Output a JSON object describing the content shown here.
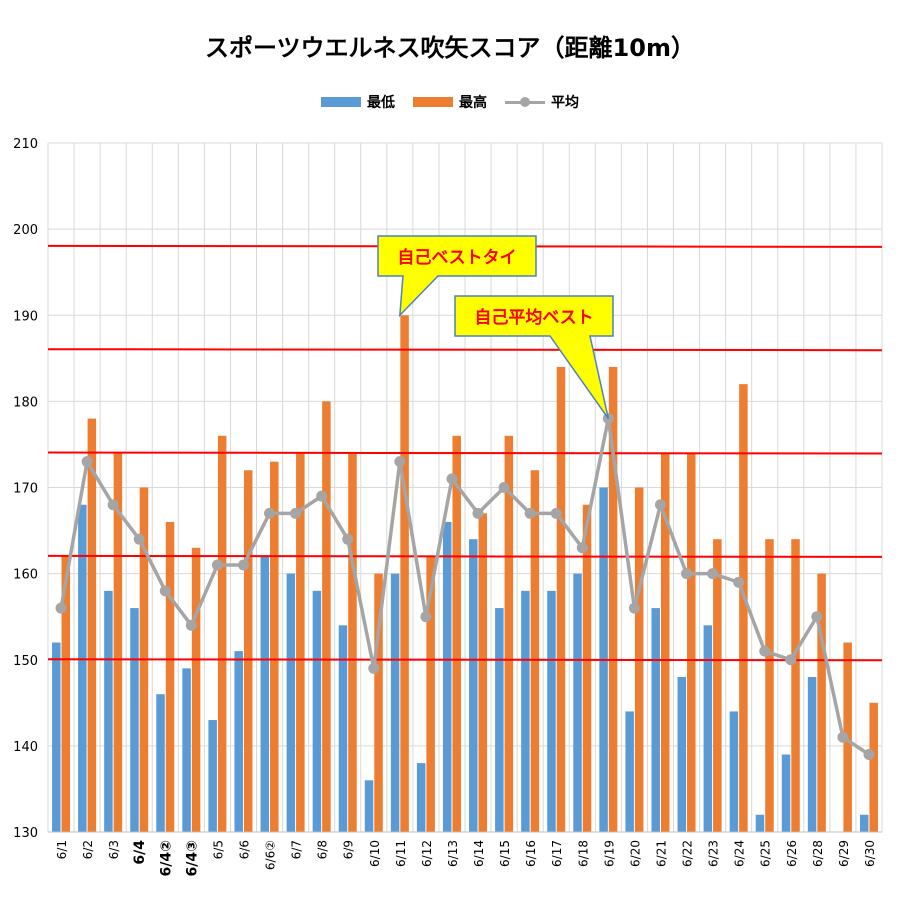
{
  "title": "スポーツウエルネス吹矢スコア（距離10m）",
  "legend": [
    {
      "label": "最低",
      "kind": "bar",
      "color": "#5B9BD5"
    },
    {
      "label": "最高",
      "kind": "bar",
      "color": "#ED7D31"
    },
    {
      "label": "平均",
      "kind": "line",
      "color": "#A5A5A5"
    }
  ],
  "callouts": [
    {
      "text": "自己ベストタイ",
      "x_category": "6/11",
      "y": 190
    },
    {
      "text": "自己平均ベスト",
      "x_category": "6/19",
      "y": 178
    }
  ],
  "colors": {
    "min": "#5B9BD5",
    "max": "#ED7D31",
    "avg": "#A5A5A5",
    "refline": "#FF0000",
    "grid": "#D9D9D9",
    "callout_fill": "#FFFF00",
    "callout_border": "#4F81BD",
    "callout_text": "#FF0000"
  },
  "chart_data": {
    "type": "bar",
    "title": "スポーツウエルネス吹矢スコア（距離10m）",
    "categories": [
      "6/1",
      "6/2",
      "6/3",
      "6/4",
      "6/4②",
      "6/4③",
      "6/5",
      "6/6",
      "6/6②",
      "6/7",
      "6/8",
      "6/9",
      "6/10",
      "6/11",
      "6/12",
      "6/13",
      "6/14",
      "6/15",
      "6/16",
      "6/17",
      "6/18",
      "6/19",
      "6/20",
      "6/21",
      "6/22",
      "6/23",
      "6/24",
      "6/25",
      "6/26",
      "6/28",
      "6/29",
      "6/30"
    ],
    "bold_categories": [
      "6/4",
      "6/4②",
      "6/4③"
    ],
    "series": [
      {
        "name": "最低",
        "type": "bar",
        "values": [
          152,
          168,
          158,
          156,
          146,
          149,
          143,
          151,
          162,
          160,
          158,
          154,
          136,
          160,
          138,
          166,
          164,
          156,
          158,
          158,
          160,
          170,
          144,
          156,
          148,
          154,
          144,
          132,
          139,
          148,
          null,
          132
        ]
      },
      {
        "name": "最高",
        "type": "bar",
        "values": [
          162,
          178,
          174,
          170,
          166,
          163,
          176,
          172,
          173,
          174,
          180,
          174,
          160,
          190,
          162,
          176,
          167,
          176,
          172,
          184,
          168,
          184,
          170,
          174,
          174,
          164,
          182,
          164,
          164,
          160,
          152,
          145
        ]
      },
      {
        "name": "平均",
        "type": "line",
        "values": [
          156,
          173,
          168,
          164,
          158,
          154,
          161,
          161,
          167,
          167,
          169,
          164,
          149,
          173,
          155,
          171,
          167,
          170,
          167,
          167,
          163,
          178,
          156,
          168,
          160,
          160,
          159,
          151,
          150,
          155,
          141,
          139
        ]
      }
    ],
    "ylim": [
      130,
      210
    ],
    "yticks": [
      130,
      140,
      150,
      160,
      170,
      180,
      190,
      200,
      210
    ],
    "reference_lines": [
      150,
      162,
      174,
      186,
      198
    ],
    "grid": true,
    "legend_position": "top"
  }
}
